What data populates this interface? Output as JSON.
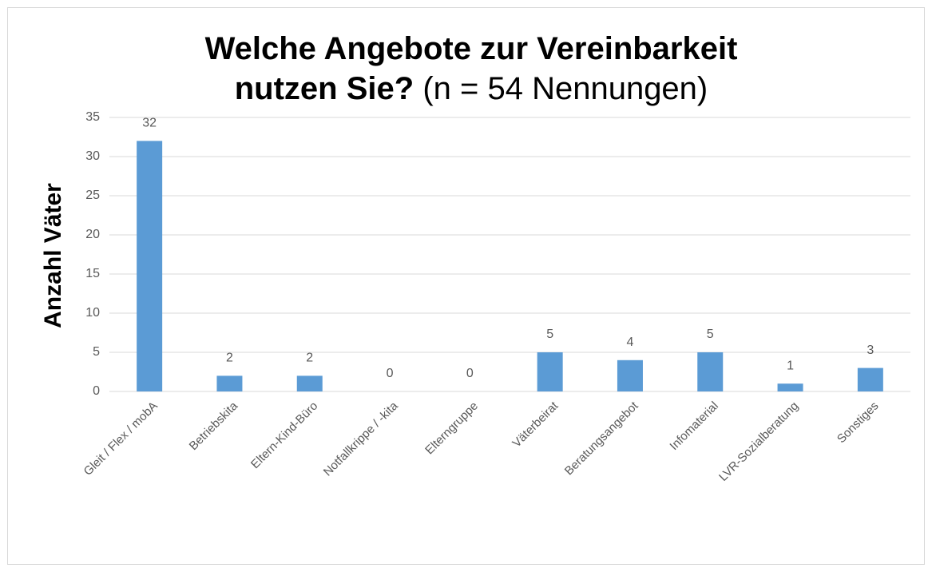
{
  "chart_data": {
    "type": "bar",
    "title": "Welche Angebote zur Vereinbarkeit nutzen Sie?",
    "subtitle": "(n = 54 Nennungen)",
    "y_label": "Anzahl Väter",
    "categories": [
      "Gleit / Flex / mobA",
      "Betriebskita",
      "Eltern-Kind-Büro",
      "Notfallkrippe / -kita",
      "Elterngruppe",
      "Väterbeirat",
      "Beratungsangebot",
      "Infomaterial",
      "LVR-Sozialberatung",
      "Sonstiges"
    ],
    "values": [
      32,
      2,
      2,
      0,
      0,
      5,
      4,
      5,
      1,
      3
    ],
    "color": "#5b9bd5",
    "ylim": [
      0,
      35
    ],
    "yticks": [
      0,
      5,
      10,
      15,
      20,
      25,
      30,
      35
    ],
    "grid": true
  }
}
